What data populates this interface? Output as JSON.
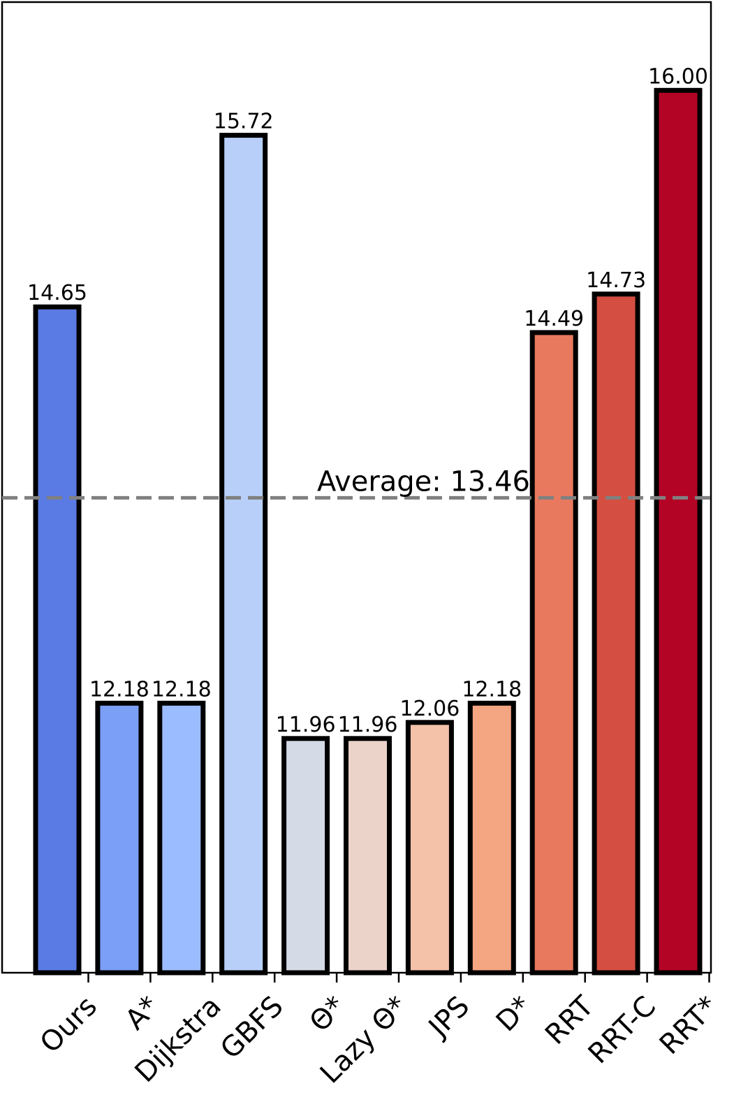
{
  "chart_data": {
    "type": "bar",
    "title": "",
    "xlabel": "",
    "ylabel": "",
    "ylim": [
      10.5,
      16.55
    ],
    "categories": [
      "Ours",
      "A*",
      "Dijkstra",
      "GBFS",
      "Θ*",
      "Lazy Θ*",
      "JPS",
      "D*",
      "RRT",
      "RRT-C",
      "RRT*"
    ],
    "values": [
      14.65,
      12.18,
      12.18,
      15.72,
      11.96,
      11.96,
      12.06,
      12.18,
      14.49,
      14.73,
      16.0
    ],
    "value_labels": [
      "14.65",
      "12.18",
      "12.18",
      "15.72",
      "11.96",
      "11.96",
      "12.06",
      "12.18",
      "14.49",
      "14.73",
      "16.00"
    ],
    "colors": [
      "#5a7ae4",
      "#7b9ff6",
      "#9bbcff",
      "#b8d0f9",
      "#d4dbe6",
      "#ebd3ca",
      "#f4c1a9",
      "#f4a582",
      "#e8795f",
      "#d44e41",
      "#b40426"
    ],
    "average": {
      "value": 13.46,
      "label": "Average: 13.46",
      "color": "#808080"
    },
    "grid": false,
    "legend": "none"
  }
}
